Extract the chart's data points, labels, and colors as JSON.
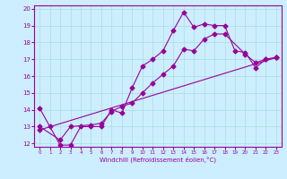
{
  "xlabel": "Windchill (Refroidissement éolien,°C)",
  "bg_color": "#cceeff",
  "line_color": "#990099",
  "xlim": [
    -0.5,
    23.5
  ],
  "ylim": [
    11.8,
    20.2
  ],
  "xticks": [
    0,
    1,
    2,
    3,
    4,
    5,
    6,
    7,
    8,
    9,
    10,
    11,
    12,
    13,
    14,
    15,
    16,
    17,
    18,
    19,
    20,
    21,
    22,
    23
  ],
  "yticks": [
    12,
    13,
    14,
    15,
    16,
    17,
    18,
    19,
    20
  ],
  "line1_x": [
    0,
    1,
    2,
    3,
    4,
    5,
    6,
    7,
    8,
    9,
    10,
    11,
    12,
    13,
    14,
    15,
    16,
    17,
    18,
    19,
    20,
    21,
    22,
    23
  ],
  "line1_y": [
    14.1,
    13.0,
    11.9,
    11.9,
    13.0,
    13.0,
    13.0,
    14.0,
    13.8,
    15.3,
    16.6,
    17.0,
    17.5,
    18.7,
    19.8,
    18.9,
    19.1,
    19.0,
    19.0,
    17.5,
    17.4,
    16.5,
    17.0,
    17.1
  ],
  "line2_x": [
    0,
    2,
    3,
    5,
    6,
    7,
    8,
    9,
    10,
    11,
    12,
    13,
    14,
    15,
    16,
    17,
    18,
    20,
    21,
    22,
    23
  ],
  "line2_y": [
    13.0,
    12.2,
    13.0,
    13.1,
    13.2,
    13.9,
    14.2,
    14.4,
    15.0,
    15.6,
    16.1,
    16.6,
    17.6,
    17.5,
    18.2,
    18.5,
    18.5,
    17.3,
    16.8,
    17.0,
    17.1
  ],
  "line3_x": [
    0,
    23
  ],
  "line3_y": [
    12.8,
    17.1
  ],
  "grid_color": "#aadddd",
  "marker": "D",
  "markersize": 2.5,
  "linewidth": 0.8
}
